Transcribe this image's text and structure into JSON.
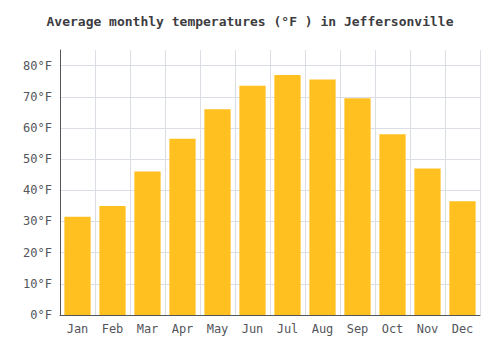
{
  "chart_data": {
    "type": "bar",
    "title": "Average monthly temperatures (°F ) in Jeffersonville",
    "categories": [
      "Jan",
      "Feb",
      "Mar",
      "Apr",
      "May",
      "Jun",
      "Jul",
      "Aug",
      "Sep",
      "Oct",
      "Nov",
      "Dec"
    ],
    "values": [
      31.5,
      35.0,
      46.0,
      56.5,
      66.0,
      73.5,
      77.0,
      75.5,
      69.5,
      58.0,
      47.0,
      36.5
    ],
    "color": "#FFC020",
    "ylim": [
      0,
      85
    ],
    "yticks": [
      {
        "value": 0,
        "label": "0°F"
      },
      {
        "value": 10,
        "label": "10°F"
      },
      {
        "value": 20,
        "label": "20°F"
      },
      {
        "value": 30,
        "label": "30°F"
      },
      {
        "value": 40,
        "label": "40°F"
      },
      {
        "value": 50,
        "label": "50°F"
      },
      {
        "value": 60,
        "label": "60°F"
      },
      {
        "value": 70,
        "label": "70°F"
      },
      {
        "value": 80,
        "label": "80°F"
      }
    ],
    "grid": true
  }
}
